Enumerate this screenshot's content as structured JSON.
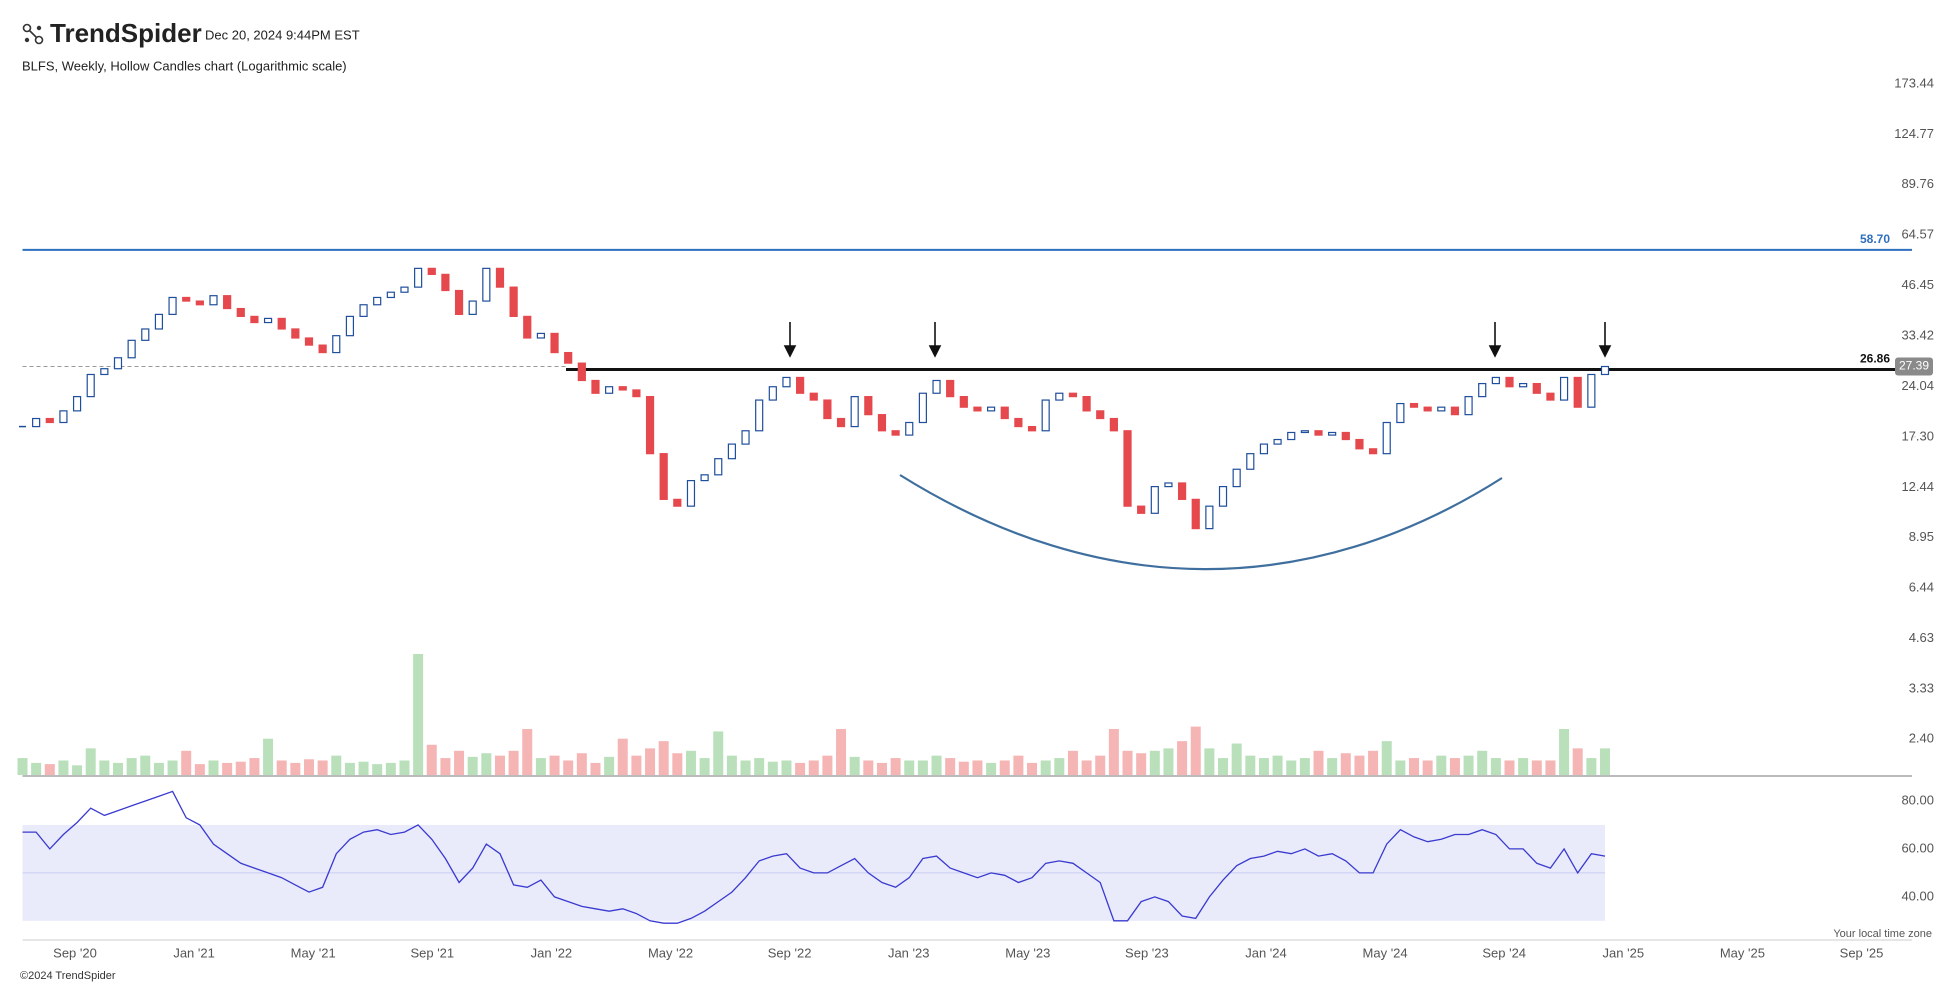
{
  "header": {
    "brand": "TrendSpider",
    "timestamp": "Dec 20, 2024 9:44PM EST"
  },
  "footer": {
    "copyright": "©2024 TrendSpider",
    "timezone": "Your local time zone"
  },
  "chart_data": {
    "type": "candlestick",
    "title": "BLFS, Weekly, Hollow Candles chart (Logarithmic scale)",
    "log_scale": true,
    "ylim": [
      1.9,
      190
    ],
    "yticks": [
      173.44,
      124.77,
      89.76,
      64.57,
      46.45,
      33.42,
      24.04,
      {
        "value": 17.3,
        "label": "17.30"
      },
      12.44,
      8.95,
      6.44,
      4.63,
      3.33,
      {
        "value": 2.4,
        "label": "2.40"
      }
    ],
    "xticks": [
      "Sep '20",
      "Jan '21",
      "May '21",
      "Sep '21",
      "Jan '22",
      "May '22",
      "Sep '22",
      "Jan '23",
      "May '23",
      "Sep '23",
      "Jan '24",
      "May '24",
      "Sep '24",
      "Jan '25",
      "May '25",
      "Sep '25"
    ],
    "up_color": "#1f4e9c",
    "down_color": "#e5484d",
    "volume_up_color": "#b9e0bb",
    "volume_down_color": "#f5b5b5",
    "values": [
      18.5,
      19.5,
      19.0,
      20.5,
      22.5,
      26.0,
      27.0,
      29.0,
      32.5,
      35.0,
      38.5,
      43.0,
      42.0,
      41.0,
      43.5,
      40.0,
      38.0,
      36.5,
      37.5,
      35.0,
      33.0,
      31.5,
      30.0,
      33.5,
      38.0,
      41.0,
      43.0,
      44.5,
      46.0,
      52.0,
      50.0,
      45.0,
      38.5,
      42.0,
      52.0,
      46.0,
      38.0,
      33.0,
      34.0,
      30.0,
      28.0,
      25.0,
      23.0,
      24.0,
      23.5,
      22.5,
      15.5,
      11.5,
      11.0,
      13.0,
      13.5,
      15.0,
      16.5,
      18.0,
      22.0,
      24.0,
      25.5,
      23.0,
      22.0,
      19.5,
      18.5,
      22.5,
      20.0,
      18.0,
      17.5,
      19.0,
      23.0,
      25.0,
      22.5,
      21.0,
      20.5,
      21.0,
      19.5,
      18.5,
      18.0,
      22.0,
      23.0,
      22.5,
      20.5,
      19.5,
      18.0,
      11.0,
      10.5,
      12.5,
      12.8,
      11.5,
      9.5,
      11.0,
      12.5,
      14.0,
      15.5,
      16.5,
      17.0,
      17.8,
      18.0,
      17.5,
      17.8,
      17.0,
      16.0,
      15.5,
      19.0,
      21.5,
      21.0,
      20.5,
      21.0,
      20.0,
      22.5,
      24.5,
      25.5,
      24.0,
      24.5,
      23.0,
      22.0,
      25.5,
      21.0,
      26.0,
      27.39
    ],
    "volume": [
      14,
      10,
      9,
      12,
      8,
      22,
      12,
      10,
      14,
      16,
      10,
      12,
      20,
      9,
      12,
      10,
      11,
      14,
      30,
      12,
      10,
      13,
      12,
      16,
      10,
      11,
      9,
      10,
      12,
      100,
      25,
      14,
      20,
      15,
      18,
      16,
      20,
      38,
      14,
      16,
      12,
      18,
      10,
      15,
      30,
      16,
      22,
      28,
      18,
      20,
      14,
      36,
      16,
      12,
      14,
      11,
      12,
      10,
      12,
      16,
      38,
      15,
      12,
      10,
      14,
      12,
      12,
      16,
      14,
      11,
      12,
      10,
      12,
      16,
      10,
      12,
      14,
      20,
      12,
      16,
      38,
      20,
      18,
      20,
      22,
      28,
      40,
      22,
      14,
      26,
      16,
      14,
      16,
      12,
      14,
      20,
      14,
      18,
      16,
      20,
      28,
      12,
      14,
      12,
      16,
      14,
      16,
      20,
      14,
      12,
      14,
      12,
      12,
      38,
      22,
      14,
      22
    ],
    "levels": [
      {
        "value": 58.7,
        "label": "58.70",
        "color": "#2f6fbf"
      },
      {
        "value": 26.86,
        "color": "#111111"
      }
    ],
    "rsi": {
      "ylim": [
        22,
        90
      ],
      "yticks": [
        {
          "value": 80,
          "label": "80.00"
        },
        {
          "value": 60,
          "label": "60.00"
        },
        {
          "value": 40,
          "label": "40.00"
        }
      ],
      "band": [
        30,
        70
      ],
      "color": "#3a3ad0",
      "band_color": "#e9ebfa",
      "values": [
        67,
        67,
        60,
        66,
        71,
        77,
        74,
        76,
        78,
        80,
        82,
        84,
        73,
        70,
        62,
        58,
        54,
        52,
        50,
        48,
        45,
        42,
        44,
        58,
        64,
        67,
        68,
        66,
        67,
        70,
        64,
        56,
        46,
        52,
        62,
        58,
        45,
        44,
        47,
        40,
        38,
        36,
        35,
        34,
        35,
        33,
        30,
        29,
        29,
        31,
        34,
        38,
        42,
        48,
        55,
        57,
        58,
        52,
        50,
        50,
        53,
        56,
        50,
        46,
        44,
        48,
        56,
        57,
        52,
        50,
        48,
        50,
        49,
        46,
        48,
        54,
        55,
        54,
        50,
        46,
        30,
        30,
        38,
        40,
        38,
        32,
        31,
        40,
        47,
        53,
        56,
        57,
        59,
        58,
        60,
        57,
        58,
        55,
        50,
        50,
        62,
        68,
        65,
        63,
        64,
        66,
        66,
        68,
        66,
        60,
        60,
        54,
        52,
        60,
        50,
        58,
        57
      ]
    }
  }
}
